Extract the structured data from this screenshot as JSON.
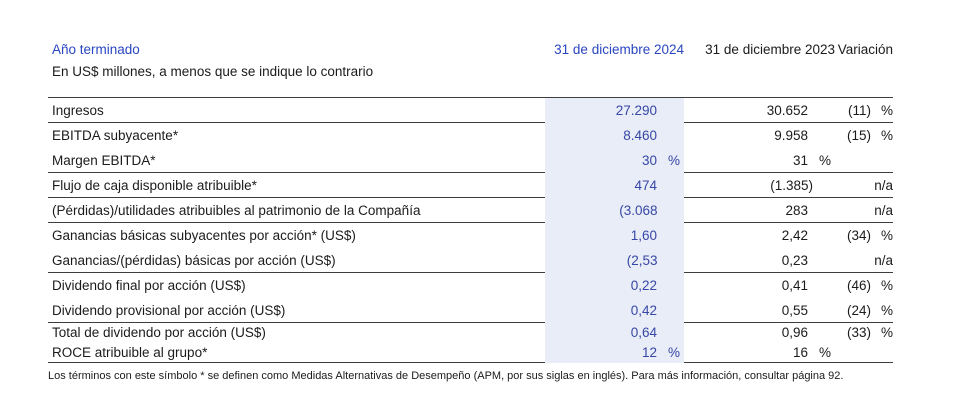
{
  "header": {
    "title": "Año terminado",
    "subtitle": "En US$ millones, a menos que se indique lo contrario",
    "col_2024": "31 de diciembre 2024",
    "col_2023": "31 de diciembre 2023",
    "col_variation": "Variación"
  },
  "table": {
    "rows": [
      {
        "label": "Ingresos",
        "v2024": "27.290",
        "p2024": "",
        "v2023": "30.652",
        "p2023": "",
        "var_val": "(11)",
        "var_pct": "%",
        "rule_after": true,
        "compact": false
      },
      {
        "label": "EBITDA subyacente*",
        "v2024": "8.460",
        "p2024": "",
        "v2023": "9.958",
        "p2023": "",
        "var_val": "(15)",
        "var_pct": "%",
        "rule_after": false,
        "compact": false
      },
      {
        "label": "Margen EBITDA*",
        "v2024": "30",
        "p2024": "%",
        "v2023": "31",
        "p2023": "%",
        "var_val": "",
        "var_pct": "",
        "rule_after": true,
        "compact": false
      },
      {
        "label": "Flujo de caja disponible atribuible*",
        "v2024": "474",
        "p2024": "",
        "v2023": "(1.385)",
        "p2023": "",
        "var_val": "",
        "var_pct": "n/a",
        "rule_after": true,
        "compact": false
      },
      {
        "label": "(Pérdidas)/utilidades atribuibles al patrimonio de la Compañía",
        "v2024": "(3.068)",
        "p2024": "",
        "v2023": "283",
        "p2023": "",
        "var_val": "",
        "var_pct": "n/a",
        "rule_after": true,
        "compact": false
      },
      {
        "label": "Ganancias básicas subyacentes por acción* (US$)",
        "v2024": "1,60",
        "p2024": "",
        "v2023": "2,42",
        "p2023": "",
        "var_val": "(34)",
        "var_pct": "%",
        "rule_after": false,
        "compact": false
      },
      {
        "label": "Ganancias/(pérdidas) básicas por acción (US$)",
        "v2024": "(2,53)",
        "p2024": "",
        "v2023": "0,23",
        "p2023": "",
        "var_val": "",
        "var_pct": "n/a",
        "rule_after": true,
        "compact": false
      },
      {
        "label": "Dividendo final por acción (US$)",
        "v2024": "0,22",
        "p2024": "",
        "v2023": "0,41",
        "p2023": "",
        "var_val": "(46)",
        "var_pct": "%",
        "rule_after": false,
        "compact": false
      },
      {
        "label": "Dividendo provisional por acción (US$)",
        "v2024": "0,42",
        "p2024": "",
        "v2023": "0,55",
        "p2023": "",
        "var_val": "(24)",
        "var_pct": "%",
        "rule_after": true,
        "compact": false
      },
      {
        "label": "Total de dividendo por acción (US$)",
        "v2024": "0,64",
        "p2024": "",
        "v2023": "0,96",
        "p2023": "",
        "var_val": "(33)",
        "var_pct": "%",
        "rule_after": false,
        "compact": true
      },
      {
        "label": "ROCE atribuible al grupo*",
        "v2024": "12",
        "p2024": "%",
        "v2023": "16",
        "p2023": "%",
        "var_val": "",
        "var_pct": "",
        "rule_after": true,
        "compact": true
      }
    ]
  },
  "footnote": "Los términos con este símbolo * se definen como Medidas Alternativas de Desempeño (APM, por sus siglas en inglés). Para más información, consultar página 92.",
  "colors": {
    "accent_blue": "#2a46c0",
    "value_blue": "#3747a5",
    "highlight_band": "#e9edf8",
    "rule": "#3d3d3d"
  }
}
